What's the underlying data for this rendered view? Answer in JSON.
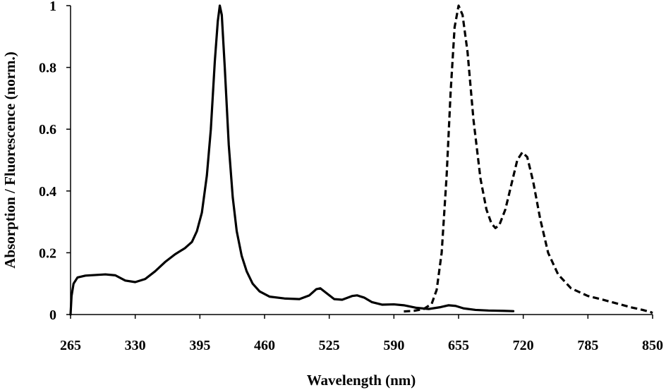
{
  "chart_data": {
    "type": "line",
    "xlabel": "Wavelength (nm)",
    "ylabel": "Absorption / Fluorescence (norm.)",
    "xlim": [
      265,
      850
    ],
    "ylim": [
      0,
      1
    ],
    "x_ticks": [
      "265",
      "330",
      "395",
      "460",
      "525",
      "590",
      "655",
      "720",
      "785",
      "850"
    ],
    "y_ticks": [
      "0",
      "0.2",
      "0.4",
      "0.6",
      "0.8",
      "1"
    ],
    "grid": false,
    "legend": "none",
    "series": [
      {
        "style": "solid",
        "color": "#000000",
        "points": [
          [
            265,
            0.0
          ],
          [
            266,
            0.06
          ],
          [
            268,
            0.1
          ],
          [
            272,
            0.12
          ],
          [
            280,
            0.126
          ],
          [
            290,
            0.128
          ],
          [
            300,
            0.13
          ],
          [
            310,
            0.127
          ],
          [
            320,
            0.11
          ],
          [
            330,
            0.105
          ],
          [
            340,
            0.115
          ],
          [
            350,
            0.14
          ],
          [
            360,
            0.17
          ],
          [
            370,
            0.195
          ],
          [
            380,
            0.215
          ],
          [
            387,
            0.235
          ],
          [
            392,
            0.27
          ],
          [
            397,
            0.33
          ],
          [
            402,
            0.45
          ],
          [
            406,
            0.6
          ],
          [
            410,
            0.82
          ],
          [
            413,
            0.95
          ],
          [
            415,
            1.0
          ],
          [
            417,
            0.97
          ],
          [
            420,
            0.8
          ],
          [
            424,
            0.55
          ],
          [
            428,
            0.38
          ],
          [
            432,
            0.27
          ],
          [
            437,
            0.19
          ],
          [
            442,
            0.14
          ],
          [
            448,
            0.1
          ],
          [
            455,
            0.075
          ],
          [
            465,
            0.058
          ],
          [
            480,
            0.052
          ],
          [
            495,
            0.05
          ],
          [
            505,
            0.062
          ],
          [
            512,
            0.082
          ],
          [
            516,
            0.085
          ],
          [
            522,
            0.07
          ],
          [
            530,
            0.05
          ],
          [
            538,
            0.048
          ],
          [
            548,
            0.06
          ],
          [
            553,
            0.062
          ],
          [
            560,
            0.055
          ],
          [
            568,
            0.04
          ],
          [
            578,
            0.032
          ],
          [
            590,
            0.033
          ],
          [
            600,
            0.03
          ],
          [
            612,
            0.022
          ],
          [
            625,
            0.018
          ],
          [
            637,
            0.024
          ],
          [
            645,
            0.03
          ],
          [
            652,
            0.028
          ],
          [
            660,
            0.02
          ],
          [
            672,
            0.015
          ],
          [
            685,
            0.013
          ],
          [
            700,
            0.012
          ],
          [
            710,
            0.011
          ]
        ]
      },
      {
        "style": "dashed",
        "color": "#000000",
        "points": [
          [
            600,
            0.01
          ],
          [
            610,
            0.012
          ],
          [
            620,
            0.018
          ],
          [
            628,
            0.035
          ],
          [
            633,
            0.08
          ],
          [
            638,
            0.2
          ],
          [
            643,
            0.45
          ],
          [
            647,
            0.72
          ],
          [
            651,
            0.93
          ],
          [
            655,
            1.0
          ],
          [
            659,
            0.97
          ],
          [
            664,
            0.85
          ],
          [
            670,
            0.63
          ],
          [
            677,
            0.44
          ],
          [
            683,
            0.34
          ],
          [
            688,
            0.295
          ],
          [
            692,
            0.28
          ],
          [
            696,
            0.29
          ],
          [
            702,
            0.34
          ],
          [
            708,
            0.42
          ],
          [
            714,
            0.5
          ],
          [
            719,
            0.525
          ],
          [
            724,
            0.51
          ],
          [
            730,
            0.43
          ],
          [
            737,
            0.31
          ],
          [
            745,
            0.2
          ],
          [
            755,
            0.13
          ],
          [
            768,
            0.085
          ],
          [
            785,
            0.06
          ],
          [
            800,
            0.048
          ],
          [
            815,
            0.035
          ],
          [
            830,
            0.022
          ],
          [
            840,
            0.015
          ],
          [
            848,
            0.008
          ],
          [
            850,
            0.005
          ]
        ]
      }
    ]
  }
}
